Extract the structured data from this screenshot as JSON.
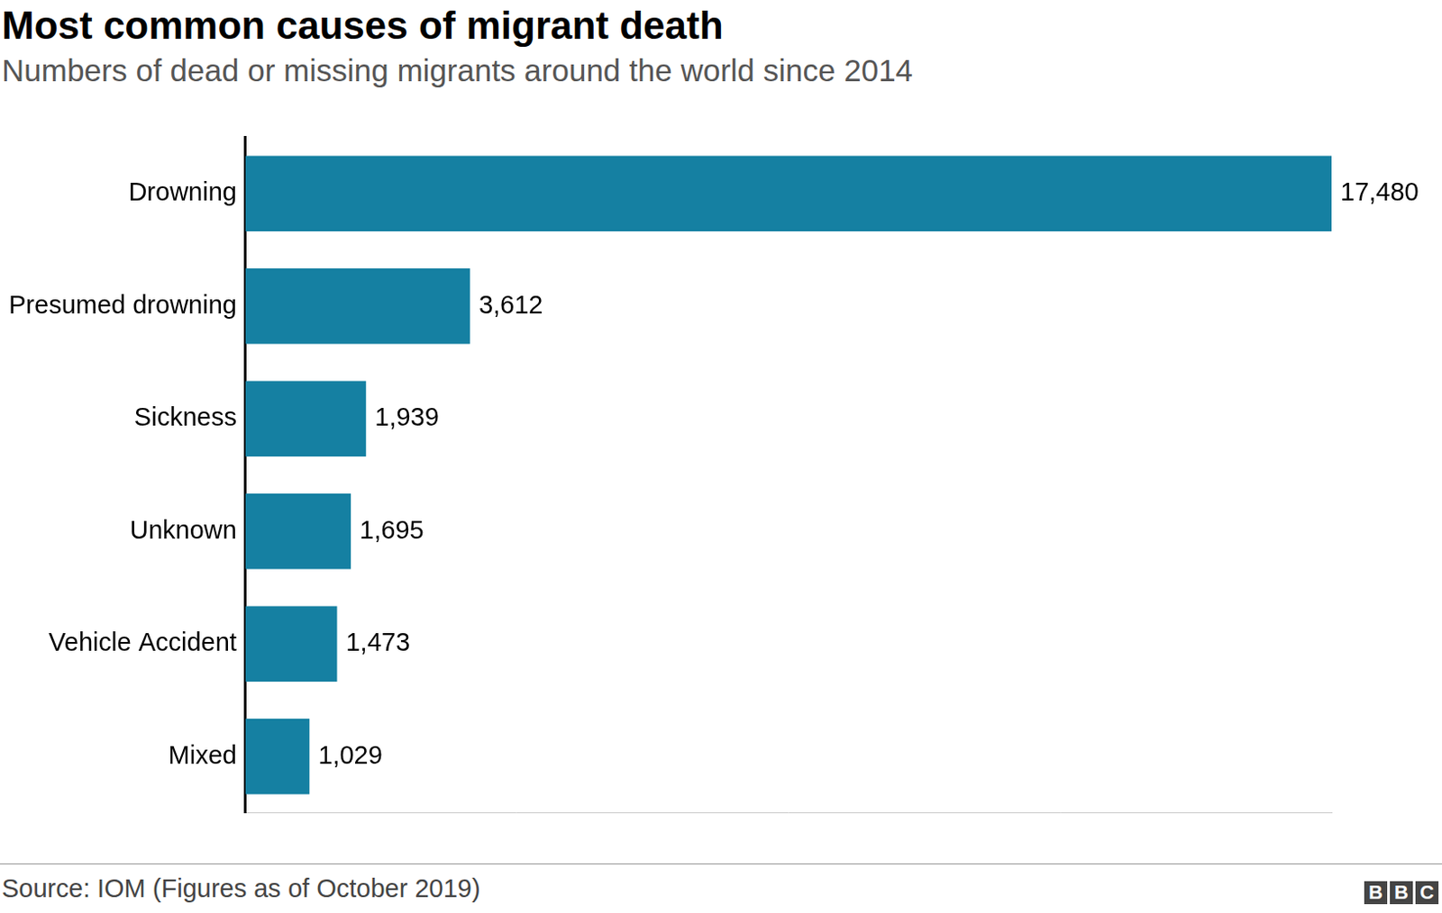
{
  "chart_data": {
    "type": "bar",
    "orientation": "horizontal",
    "title": "Most common causes of migrant death",
    "subtitle": "Numbers of dead or missing migrants around the world since 2014",
    "categories": [
      "Drowning",
      "Presumed drowning",
      "Sickness",
      "Unknown",
      "Vehicle Accident",
      "Mixed"
    ],
    "values": [
      17480,
      3612,
      1939,
      1695,
      1473,
      1029
    ],
    "value_labels": [
      "17,480",
      "3,612",
      "1,939",
      "1,695",
      "1,473",
      "1,029"
    ],
    "data_labels": true,
    "color": "#1580a2",
    "xlim": [
      0,
      17480
    ],
    "xticks": [],
    "grid": false,
    "tick_labels": "y",
    "source": "Source: IOM (Figures as of October 2019)",
    "logo": "BBC"
  }
}
